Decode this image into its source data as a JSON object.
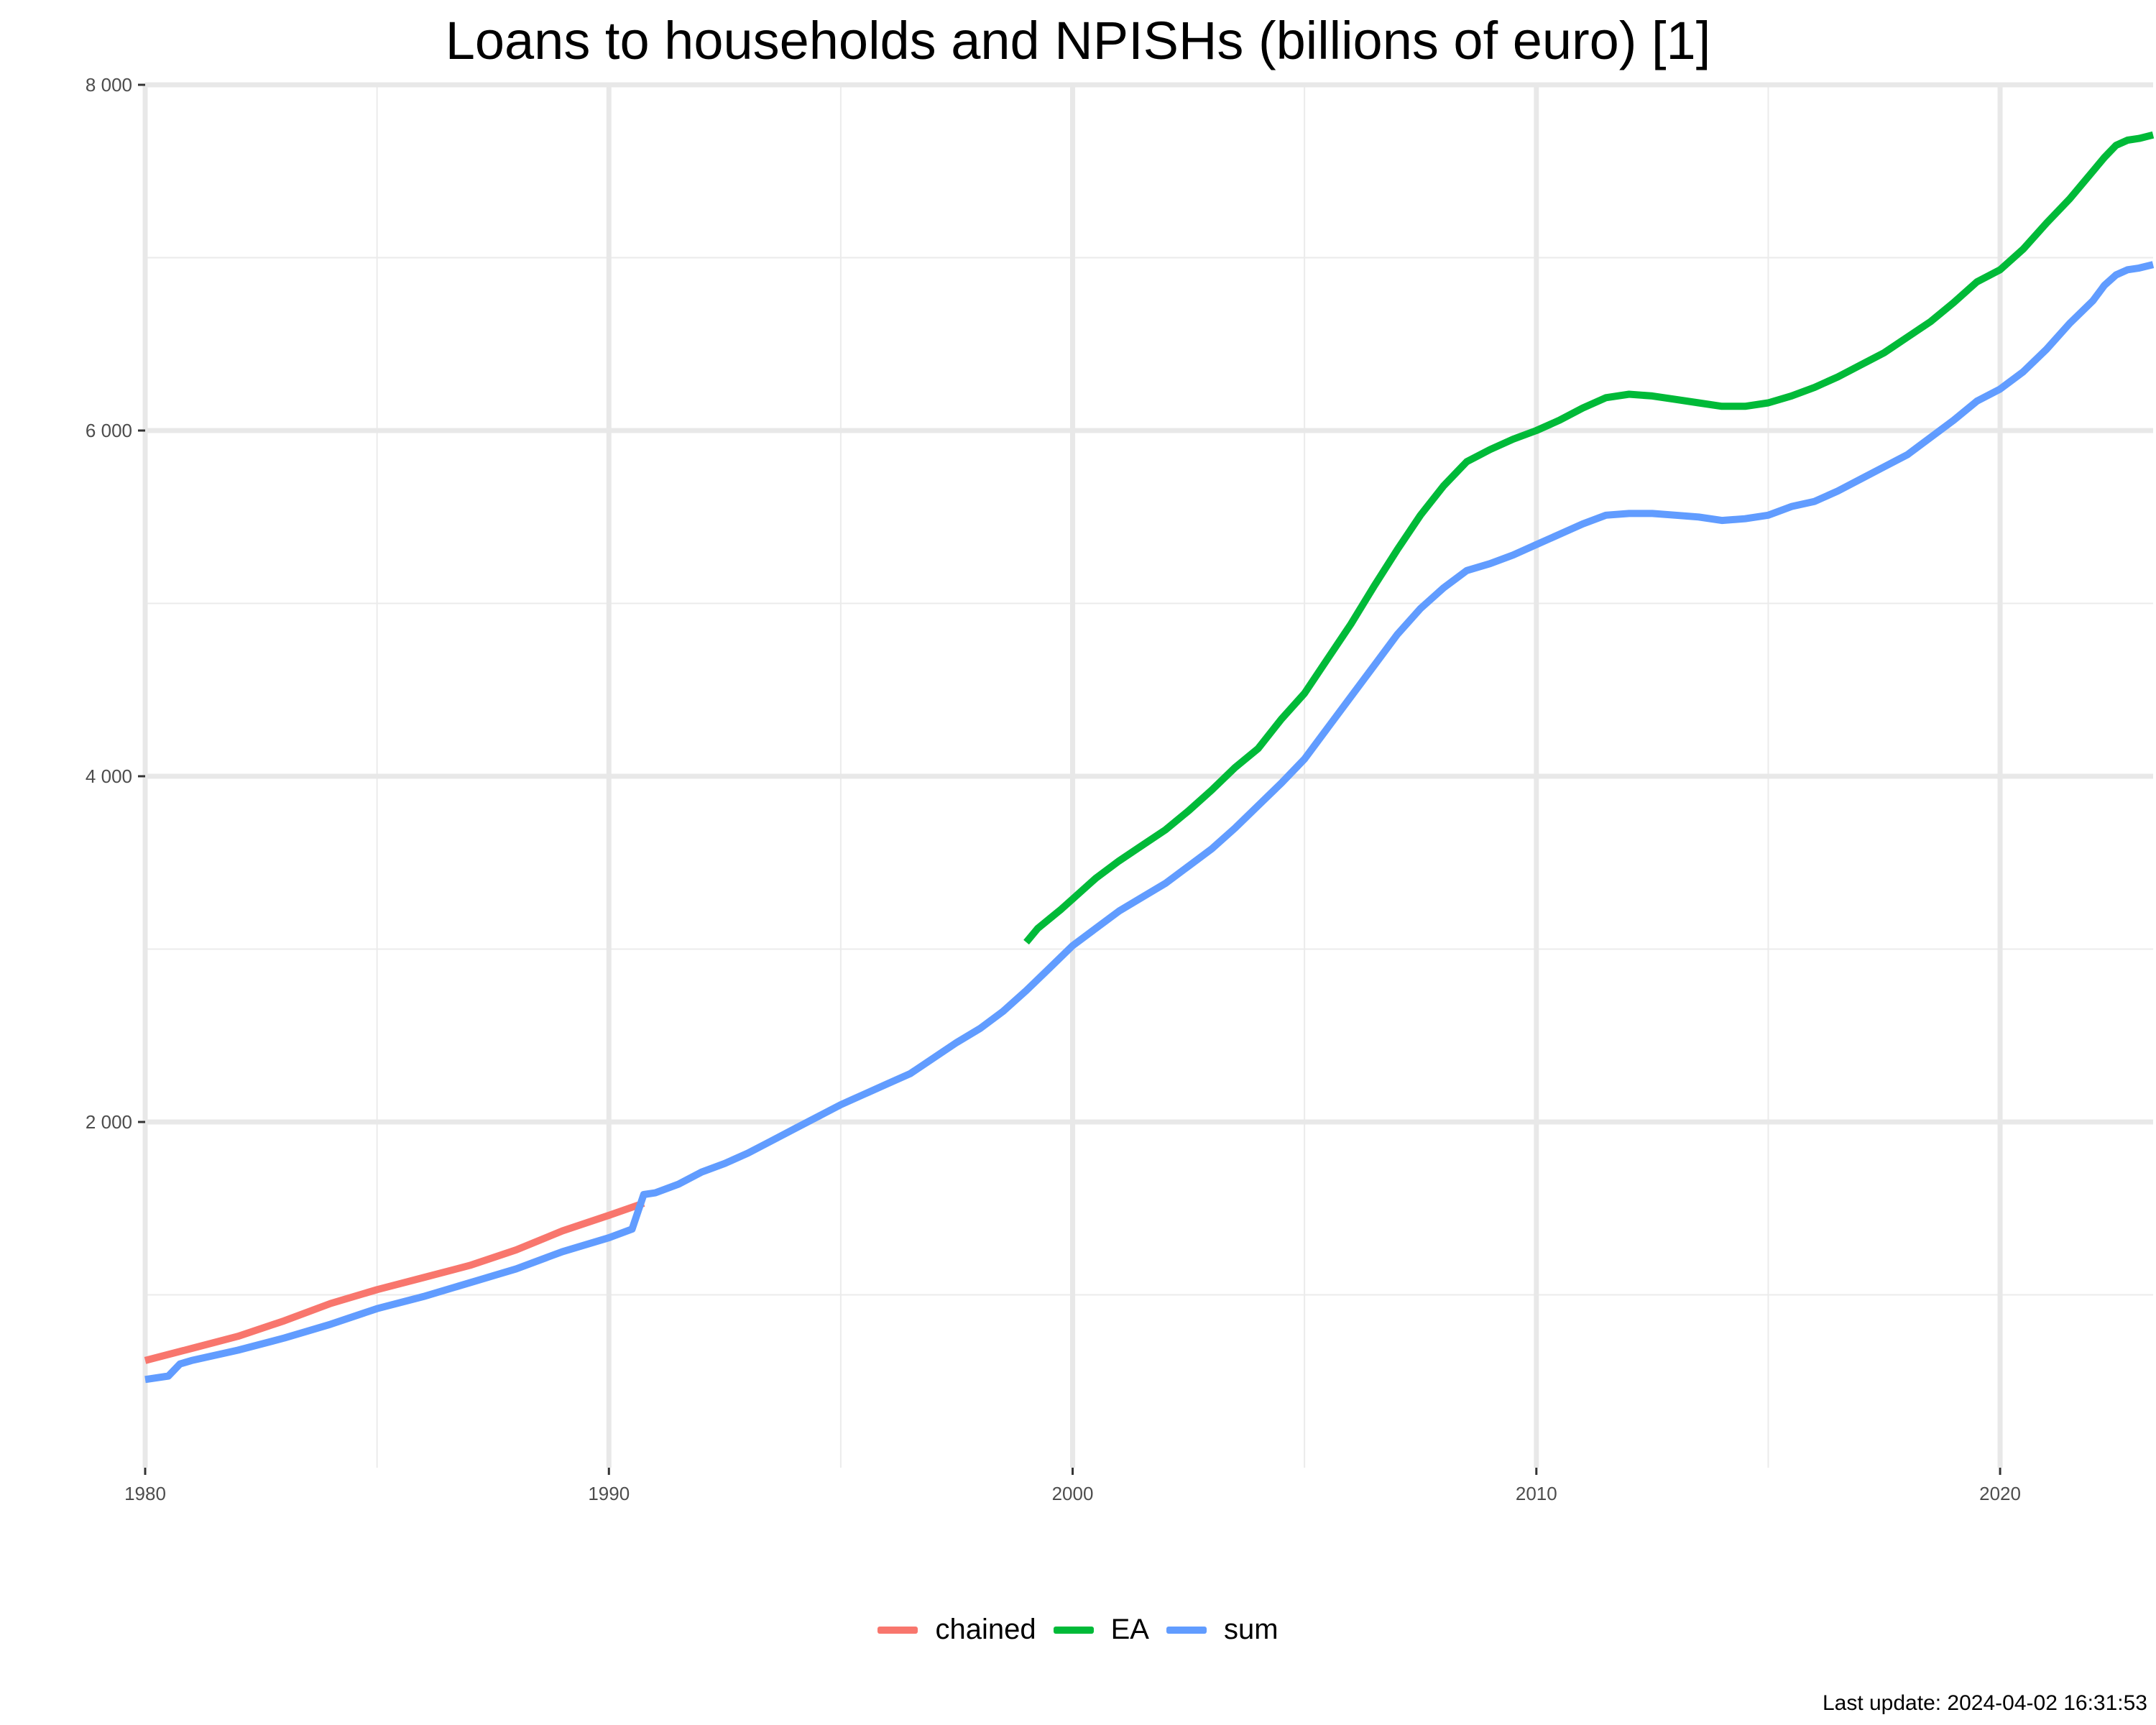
{
  "title": "Loans to households and NPISHs (billions of euro) [1]",
  "footer": "Last update: 2024-04-02 16:31:53",
  "chart_data": {
    "type": "line",
    "title": "Loans to households and NPISHs (billions of euro) [1]",
    "xlabel": "",
    "ylabel": "",
    "xlim": [
      1980,
      2023.3
    ],
    "ylim": [
      0,
      8000
    ],
    "x_ticks": [
      1980,
      1990,
      2000,
      2010,
      2020
    ],
    "x_tick_labels": [
      "1980",
      "1990",
      "2000",
      "2010",
      "2020"
    ],
    "y_ticks": [
      2000,
      4000,
      6000,
      8000
    ],
    "y_tick_labels": [
      "2 000",
      "4 000",
      "6 000",
      "8 000"
    ],
    "grid": true,
    "legend_position": "bottom",
    "series": [
      {
        "name": "chained",
        "color": "#F8766D",
        "points": [
          [
            1980,
            620
          ],
          [
            1981,
            690
          ],
          [
            1982,
            760
          ],
          [
            1983,
            850
          ],
          [
            1984,
            950
          ],
          [
            1985,
            1030
          ],
          [
            1986,
            1100
          ],
          [
            1987,
            1170
          ],
          [
            1988,
            1260
          ],
          [
            1989,
            1370
          ],
          [
            1990,
            1460
          ],
          [
            1990.75,
            1530
          ]
        ]
      },
      {
        "name": "EA",
        "color": "#00BA38",
        "points": [
          [
            1999,
            3040
          ],
          [
            1999.25,
            3120
          ],
          [
            1999.75,
            3230
          ],
          [
            2000,
            3290
          ],
          [
            2000.5,
            3410
          ],
          [
            2001,
            3510
          ],
          [
            2001.5,
            3600
          ],
          [
            2002,
            3690
          ],
          [
            2002.5,
            3800
          ],
          [
            2003,
            3920
          ],
          [
            2003.5,
            4050
          ],
          [
            2004,
            4160
          ],
          [
            2004.5,
            4330
          ],
          [
            2005,
            4480
          ],
          [
            2005.5,
            4680
          ],
          [
            2006,
            4880
          ],
          [
            2006.5,
            5100
          ],
          [
            2007,
            5310
          ],
          [
            2007.5,
            5510
          ],
          [
            2008,
            5680
          ],
          [
            2008.5,
            5820
          ],
          [
            2009,
            5890
          ],
          [
            2009.5,
            5950
          ],
          [
            2010,
            6000
          ],
          [
            2010.5,
            6060
          ],
          [
            2011,
            6130
          ],
          [
            2011.5,
            6190
          ],
          [
            2012,
            6210
          ],
          [
            2012.5,
            6200
          ],
          [
            2013,
            6180
          ],
          [
            2013.5,
            6160
          ],
          [
            2014,
            6140
          ],
          [
            2014.5,
            6140
          ],
          [
            2015,
            6160
          ],
          [
            2015.5,
            6200
          ],
          [
            2016,
            6250
          ],
          [
            2016.5,
            6310
          ],
          [
            2017,
            6380
          ],
          [
            2017.5,
            6450
          ],
          [
            2018,
            6540
          ],
          [
            2018.5,
            6630
          ],
          [
            2019,
            6740
          ],
          [
            2019.5,
            6860
          ],
          [
            2020,
            6930
          ],
          [
            2020.5,
            7050
          ],
          [
            2021,
            7200
          ],
          [
            2021.5,
            7340
          ],
          [
            2022,
            7500
          ],
          [
            2022.25,
            7580
          ],
          [
            2022.5,
            7650
          ],
          [
            2022.75,
            7680
          ],
          [
            2023,
            7690
          ],
          [
            2023.3,
            7710
          ]
        ]
      },
      {
        "name": "sum",
        "color": "#619CFF",
        "points": [
          [
            1980,
            510
          ],
          [
            1980.5,
            530
          ],
          [
            1980.75,
            600
          ],
          [
            1981,
            620
          ],
          [
            1982,
            680
          ],
          [
            1983,
            750
          ],
          [
            1984,
            830
          ],
          [
            1985,
            920
          ],
          [
            1986,
            990
          ],
          [
            1987,
            1070
          ],
          [
            1988,
            1150
          ],
          [
            1989,
            1250
          ],
          [
            1990,
            1330
          ],
          [
            1990.5,
            1380
          ],
          [
            1990.75,
            1580
          ],
          [
            1991,
            1590
          ],
          [
            1991.5,
            1640
          ],
          [
            1992,
            1710
          ],
          [
            1992.5,
            1760
          ],
          [
            1993,
            1820
          ],
          [
            1993.5,
            1890
          ],
          [
            1994,
            1960
          ],
          [
            1994.5,
            2030
          ],
          [
            1995,
            2100
          ],
          [
            1995.5,
            2160
          ],
          [
            1996,
            2220
          ],
          [
            1996.5,
            2280
          ],
          [
            1997,
            2370
          ],
          [
            1997.5,
            2460
          ],
          [
            1998,
            2540
          ],
          [
            1998.5,
            2640
          ],
          [
            1999,
            2760
          ],
          [
            1999.5,
            2890
          ],
          [
            2000,
            3020
          ],
          [
            2000.5,
            3120
          ],
          [
            2001,
            3220
          ],
          [
            2001.5,
            3300
          ],
          [
            2002,
            3380
          ],
          [
            2002.5,
            3480
          ],
          [
            2003,
            3580
          ],
          [
            2003.5,
            3700
          ],
          [
            2004,
            3830
          ],
          [
            2004.5,
            3960
          ],
          [
            2005,
            4100
          ],
          [
            2005.5,
            4280
          ],
          [
            2006,
            4460
          ],
          [
            2006.5,
            4640
          ],
          [
            2007,
            4820
          ],
          [
            2007.5,
            4970
          ],
          [
            2008,
            5090
          ],
          [
            2008.5,
            5190
          ],
          [
            2009,
            5230
          ],
          [
            2009.5,
            5280
          ],
          [
            2010,
            5340
          ],
          [
            2010.5,
            5400
          ],
          [
            2011,
            5460
          ],
          [
            2011.5,
            5510
          ],
          [
            2012,
            5520
          ],
          [
            2012.5,
            5520
          ],
          [
            2013,
            5510
          ],
          [
            2013.5,
            5500
          ],
          [
            2014,
            5480
          ],
          [
            2014.5,
            5490
          ],
          [
            2015,
            5510
          ],
          [
            2015.5,
            5560
          ],
          [
            2016,
            5590
          ],
          [
            2016.5,
            5650
          ],
          [
            2017,
            5720
          ],
          [
            2017.5,
            5790
          ],
          [
            2018,
            5860
          ],
          [
            2018.5,
            5960
          ],
          [
            2019,
            6060
          ],
          [
            2019.5,
            6170
          ],
          [
            2020,
            6240
          ],
          [
            2020.5,
            6340
          ],
          [
            2021,
            6470
          ],
          [
            2021.5,
            6620
          ],
          [
            2022,
            6750
          ],
          [
            2022.25,
            6840
          ],
          [
            2022.5,
            6900
          ],
          [
            2022.75,
            6930
          ],
          [
            2023,
            6940
          ],
          [
            2023.3,
            6960
          ]
        ]
      }
    ]
  }
}
